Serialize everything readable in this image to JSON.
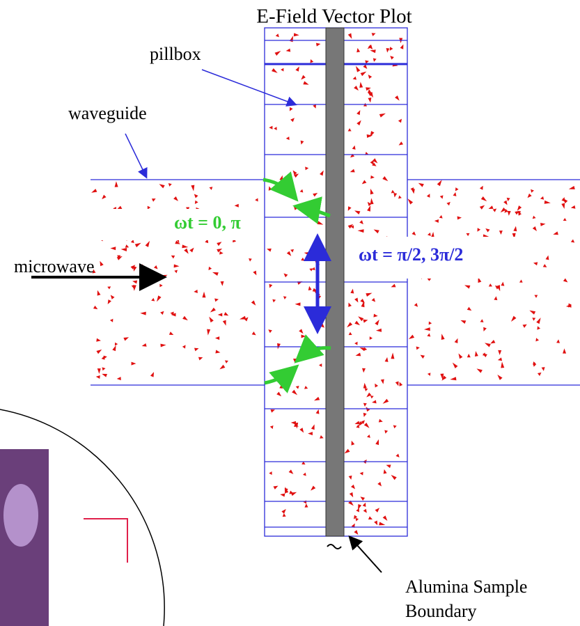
{
  "title": "E-Field Vector Plot",
  "labels": {
    "pillbox": "pillbox",
    "waveguide": "waveguide",
    "microwave": "microwave",
    "phase_zero": "ωt = 0, π",
    "phase_half": "ωt = π/2, 3π/2",
    "sample_line1": "Alumina Sample",
    "sample_line2": "Boundary"
  }
}
